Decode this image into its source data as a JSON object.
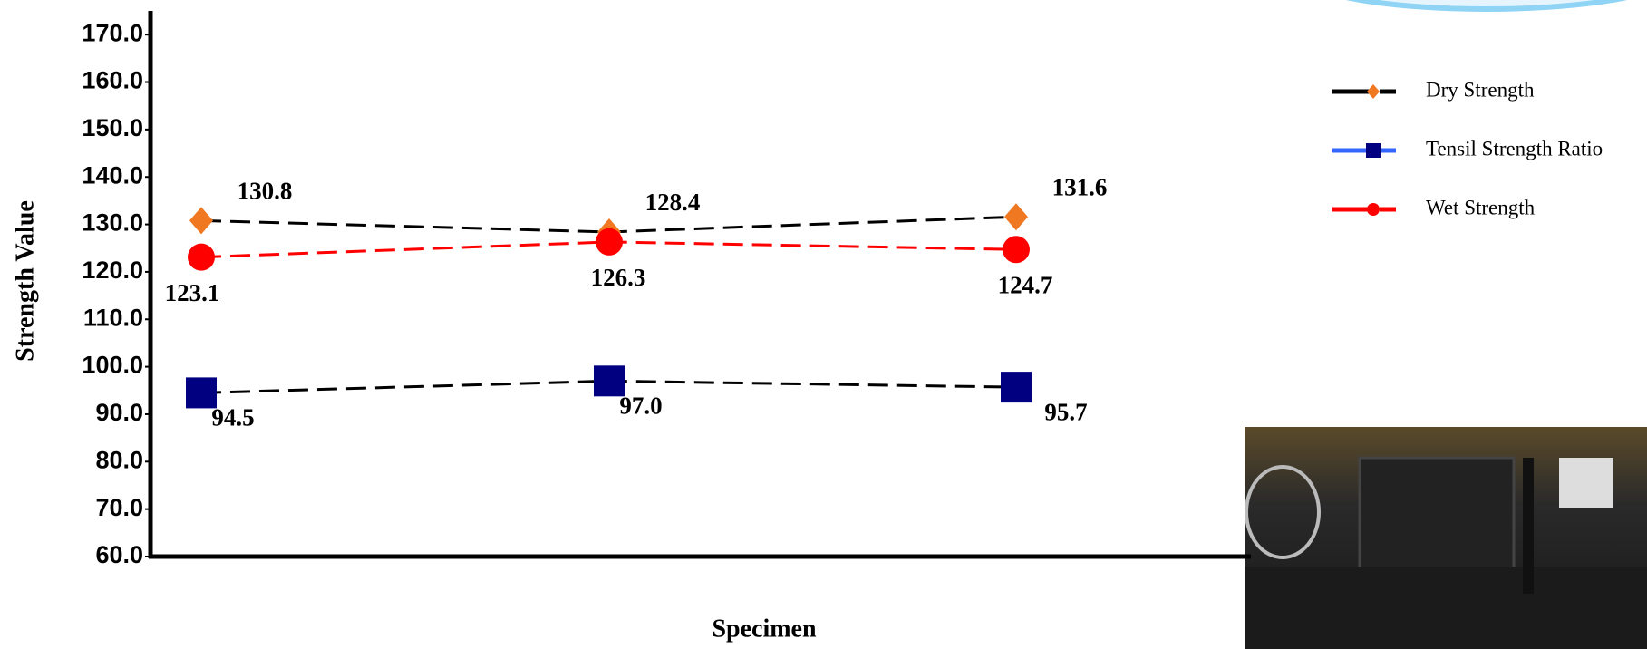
{
  "chart_data": {
    "type": "line",
    "x_label": "Specimen",
    "y_label": "Strength Value",
    "categories": [
      null,
      null,
      null
    ],
    "ylim": [
      60,
      175
    ],
    "yticks": [
      {
        "value": 60,
        "label": "60.0"
      },
      {
        "value": 70,
        "label": "70.0"
      },
      {
        "value": 80,
        "label": "80.0"
      },
      {
        "value": 90,
        "label": "90.0"
      },
      {
        "value": 100,
        "label": "100.0"
      },
      {
        "value": 110,
        "label": "110.0"
      },
      {
        "value": 120,
        "label": "120.0"
      },
      {
        "value": 130,
        "label": "130.0"
      },
      {
        "value": 140,
        "label": "140.0"
      },
      {
        "value": 150,
        "label": "150.0"
      },
      {
        "value": 160,
        "label": "160.0"
      },
      {
        "value": 170,
        "label": "170.0"
      }
    ],
    "grid": false,
    "legend_position": "right",
    "series": [
      {
        "name": "Dry Strength",
        "color": "#f07820",
        "line_color": "#000000",
        "marker": "diamond",
        "values": [
          130.8,
          128.4,
          131.6
        ],
        "value_labels": [
          "130.8",
          "128.4",
          "131.6"
        ]
      },
      {
        "name": "Tensil Strength Ratio",
        "color": "#000080",
        "line_color": "#000000",
        "legend_line_color": "#3366ff",
        "marker": "square",
        "values": [
          94.5,
          97.0,
          95.7
        ],
        "value_labels": [
          "94.5",
          "97.0",
          "95.7"
        ]
      },
      {
        "name": "Wet Strength",
        "color": "#ff0000",
        "line_color": "#ff0000",
        "marker": "circle",
        "values": [
          123.1,
          126.3,
          124.7
        ],
        "value_labels": [
          "123.1",
          "126.3",
          "124.7"
        ]
      }
    ]
  }
}
